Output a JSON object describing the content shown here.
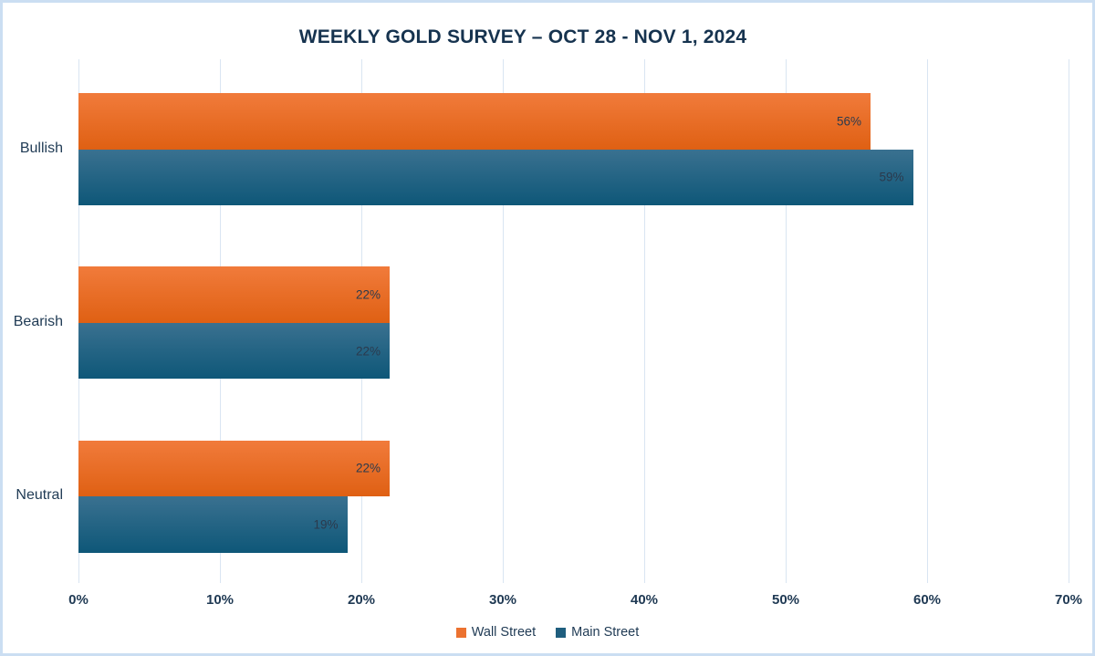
{
  "title": "WEEKLY GOLD SURVEY – OCT 28 - NOV 1, 2024",
  "colors": {
    "frame_border": "#cbdef2",
    "gridline": "#d9e5f2",
    "title_text": "#16334f",
    "axis_text": "#203a54",
    "data_label_text": "#2b3a4d"
  },
  "chart_data": {
    "type": "bar",
    "orientation": "horizontal",
    "title": "WEEKLY GOLD SURVEY – OCT 28 - NOV 1, 2024",
    "categories": [
      "Bullish",
      "Bearish",
      "Neutral"
    ],
    "series": [
      {
        "name": "Wall Street",
        "values": [
          56,
          22,
          22
        ],
        "value_labels": [
          "56%",
          "22%",
          "22%"
        ],
        "gradient_top": "#f17b3b",
        "gradient_bottom": "#df6013",
        "legend_color": "#ec7230"
      },
      {
        "name": "Main Street",
        "values": [
          59,
          22,
          19
        ],
        "value_labels": [
          "59%",
          "22%",
          "19%"
        ],
        "gradient_top": "#3a7190",
        "gradient_bottom": "#0e5778",
        "legend_color": "#1f5e7e"
      }
    ],
    "x_ticks": [
      "0%",
      "10%",
      "20%",
      "30%",
      "40%",
      "50%",
      "60%",
      "70%"
    ],
    "xlim": [
      0,
      70
    ],
    "grid": true,
    "legend_position": "bottom",
    "data_labels": "inside-end"
  }
}
